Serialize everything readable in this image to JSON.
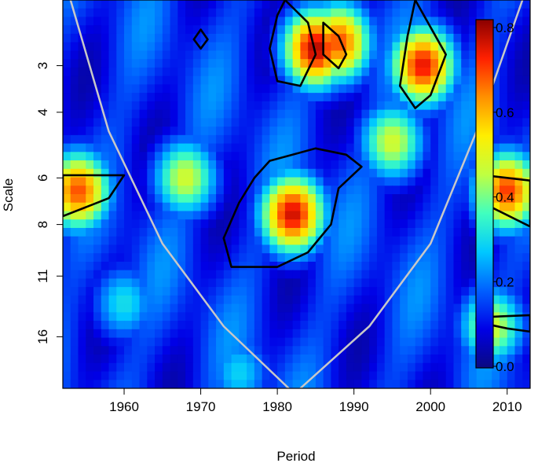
{
  "chart_data": {
    "type": "heatmap",
    "subtype": "wavelet-coherence",
    "title": "",
    "xlabel": "Period",
    "ylabel": "Scale",
    "xlim": [
      1952,
      2013
    ],
    "x_ticks": [
      1960,
      1970,
      1980,
      1990,
      2000,
      2010
    ],
    "y_scale": "log2",
    "y_reversed": true,
    "ylim": [
      2,
      22
    ],
    "y_ticks": [
      3,
      4,
      6,
      8,
      11,
      16
    ],
    "colorbar": {
      "range": [
        0,
        0.85
      ],
      "ticks": [
        "0.0",
        "0.2",
        "0.4",
        "0.6",
        "0.8"
      ],
      "colors": [
        "#0a0a80",
        "#0000e6",
        "#0060ff",
        "#00c8ff",
        "#40ffbf",
        "#c0ff40",
        "#ffee00",
        "#ff9000",
        "#ff2000",
        "#8b0000"
      ]
    },
    "hotspots": [
      {
        "x": 1985,
        "scale": 2.7,
        "value": 0.82
      },
      {
        "x": 1999,
        "scale": 3.0,
        "value": 0.78
      },
      {
        "x": 1982,
        "scale": 7.5,
        "value": 0.8
      },
      {
        "x": 1954,
        "scale": 6.5,
        "value": 0.72
      },
      {
        "x": 2010,
        "scale": 6.5,
        "value": 0.74
      },
      {
        "x": 1968,
        "scale": 6.0,
        "value": 0.5
      },
      {
        "x": 1995,
        "scale": 4.8,
        "value": 0.5
      },
      {
        "x": 1988,
        "scale": 2.6,
        "value": 0.72
      },
      {
        "x": 1960,
        "scale": 13.0,
        "value": 0.32
      },
      {
        "x": 2008,
        "scale": 15.0,
        "value": 0.5
      },
      {
        "x": 1975,
        "scale": 20.0,
        "value": 0.3
      }
    ],
    "significant_regions": [
      {
        "name": "A",
        "points": [
          [
            1952,
            5.9
          ],
          [
            1960,
            5.9
          ],
          [
            1958,
            6.8
          ],
          [
            1952,
            7.6
          ]
        ]
      },
      {
        "name": "B",
        "points": [
          [
            1979,
            5.4
          ],
          [
            1985,
            5.0
          ],
          [
            1989,
            5.2
          ],
          [
            1991,
            5.6
          ],
          [
            1988,
            6.4
          ],
          [
            1987,
            8.0
          ],
          [
            1984,
            9.5
          ],
          [
            1980,
            10.4
          ],
          [
            1974,
            10.4
          ],
          [
            1973,
            8.7
          ],
          [
            1975,
            7.0
          ],
          [
            1977,
            6.0
          ]
        ]
      },
      {
        "name": "C",
        "points": [
          [
            1981,
            2.0
          ],
          [
            1984,
            2.3
          ],
          [
            1985,
            2.8
          ],
          [
            1983,
            3.4
          ],
          [
            1980,
            3.3
          ],
          [
            1979,
            2.7
          ],
          [
            1980,
            2.2
          ]
        ]
      },
      {
        "name": "D",
        "points": [
          [
            1986,
            2.3
          ],
          [
            1988,
            2.5
          ],
          [
            1989,
            2.8
          ],
          [
            1988,
            3.05
          ],
          [
            1986,
            2.8
          ]
        ]
      },
      {
        "name": "E",
        "points": [
          [
            1998,
            2.0
          ],
          [
            2002,
            2.8
          ],
          [
            2000,
            3.6
          ],
          [
            1998,
            3.9
          ],
          [
            1996,
            3.4
          ],
          [
            1997,
            2.5
          ]
        ]
      },
      {
        "name": "F",
        "points": [
          [
            2007,
            5.9
          ],
          [
            2013,
            6.1
          ],
          [
            2013,
            8.1
          ],
          [
            2008,
            7.2
          ],
          [
            2006,
            6.5
          ]
        ]
      },
      {
        "name": "G",
        "points": [
          [
            1970,
            2.4
          ],
          [
            1970.9,
            2.55
          ],
          [
            1970,
            2.7
          ],
          [
            1969.1,
            2.55
          ]
        ]
      },
      {
        "name": "H",
        "points": [
          [
            2006,
            14.2
          ],
          [
            2013,
            14.0
          ],
          [
            2013,
            15.5
          ],
          [
            2010,
            15.2
          ],
          [
            2006,
            14.6
          ]
        ]
      }
    ],
    "cone_of_influence": {
      "left": [
        [
          1953,
          2.0
        ],
        [
          1958,
          4.5
        ],
        [
          1965,
          9.0
        ],
        [
          1973,
          15.0
        ],
        [
          1981.5,
          22.0
        ]
      ],
      "right": [
        [
          2012,
          2.0
        ],
        [
          2006,
          4.5
        ],
        [
          2000,
          9.0
        ],
        [
          1992,
          15.0
        ],
        [
          1983,
          22.0
        ]
      ]
    }
  }
}
